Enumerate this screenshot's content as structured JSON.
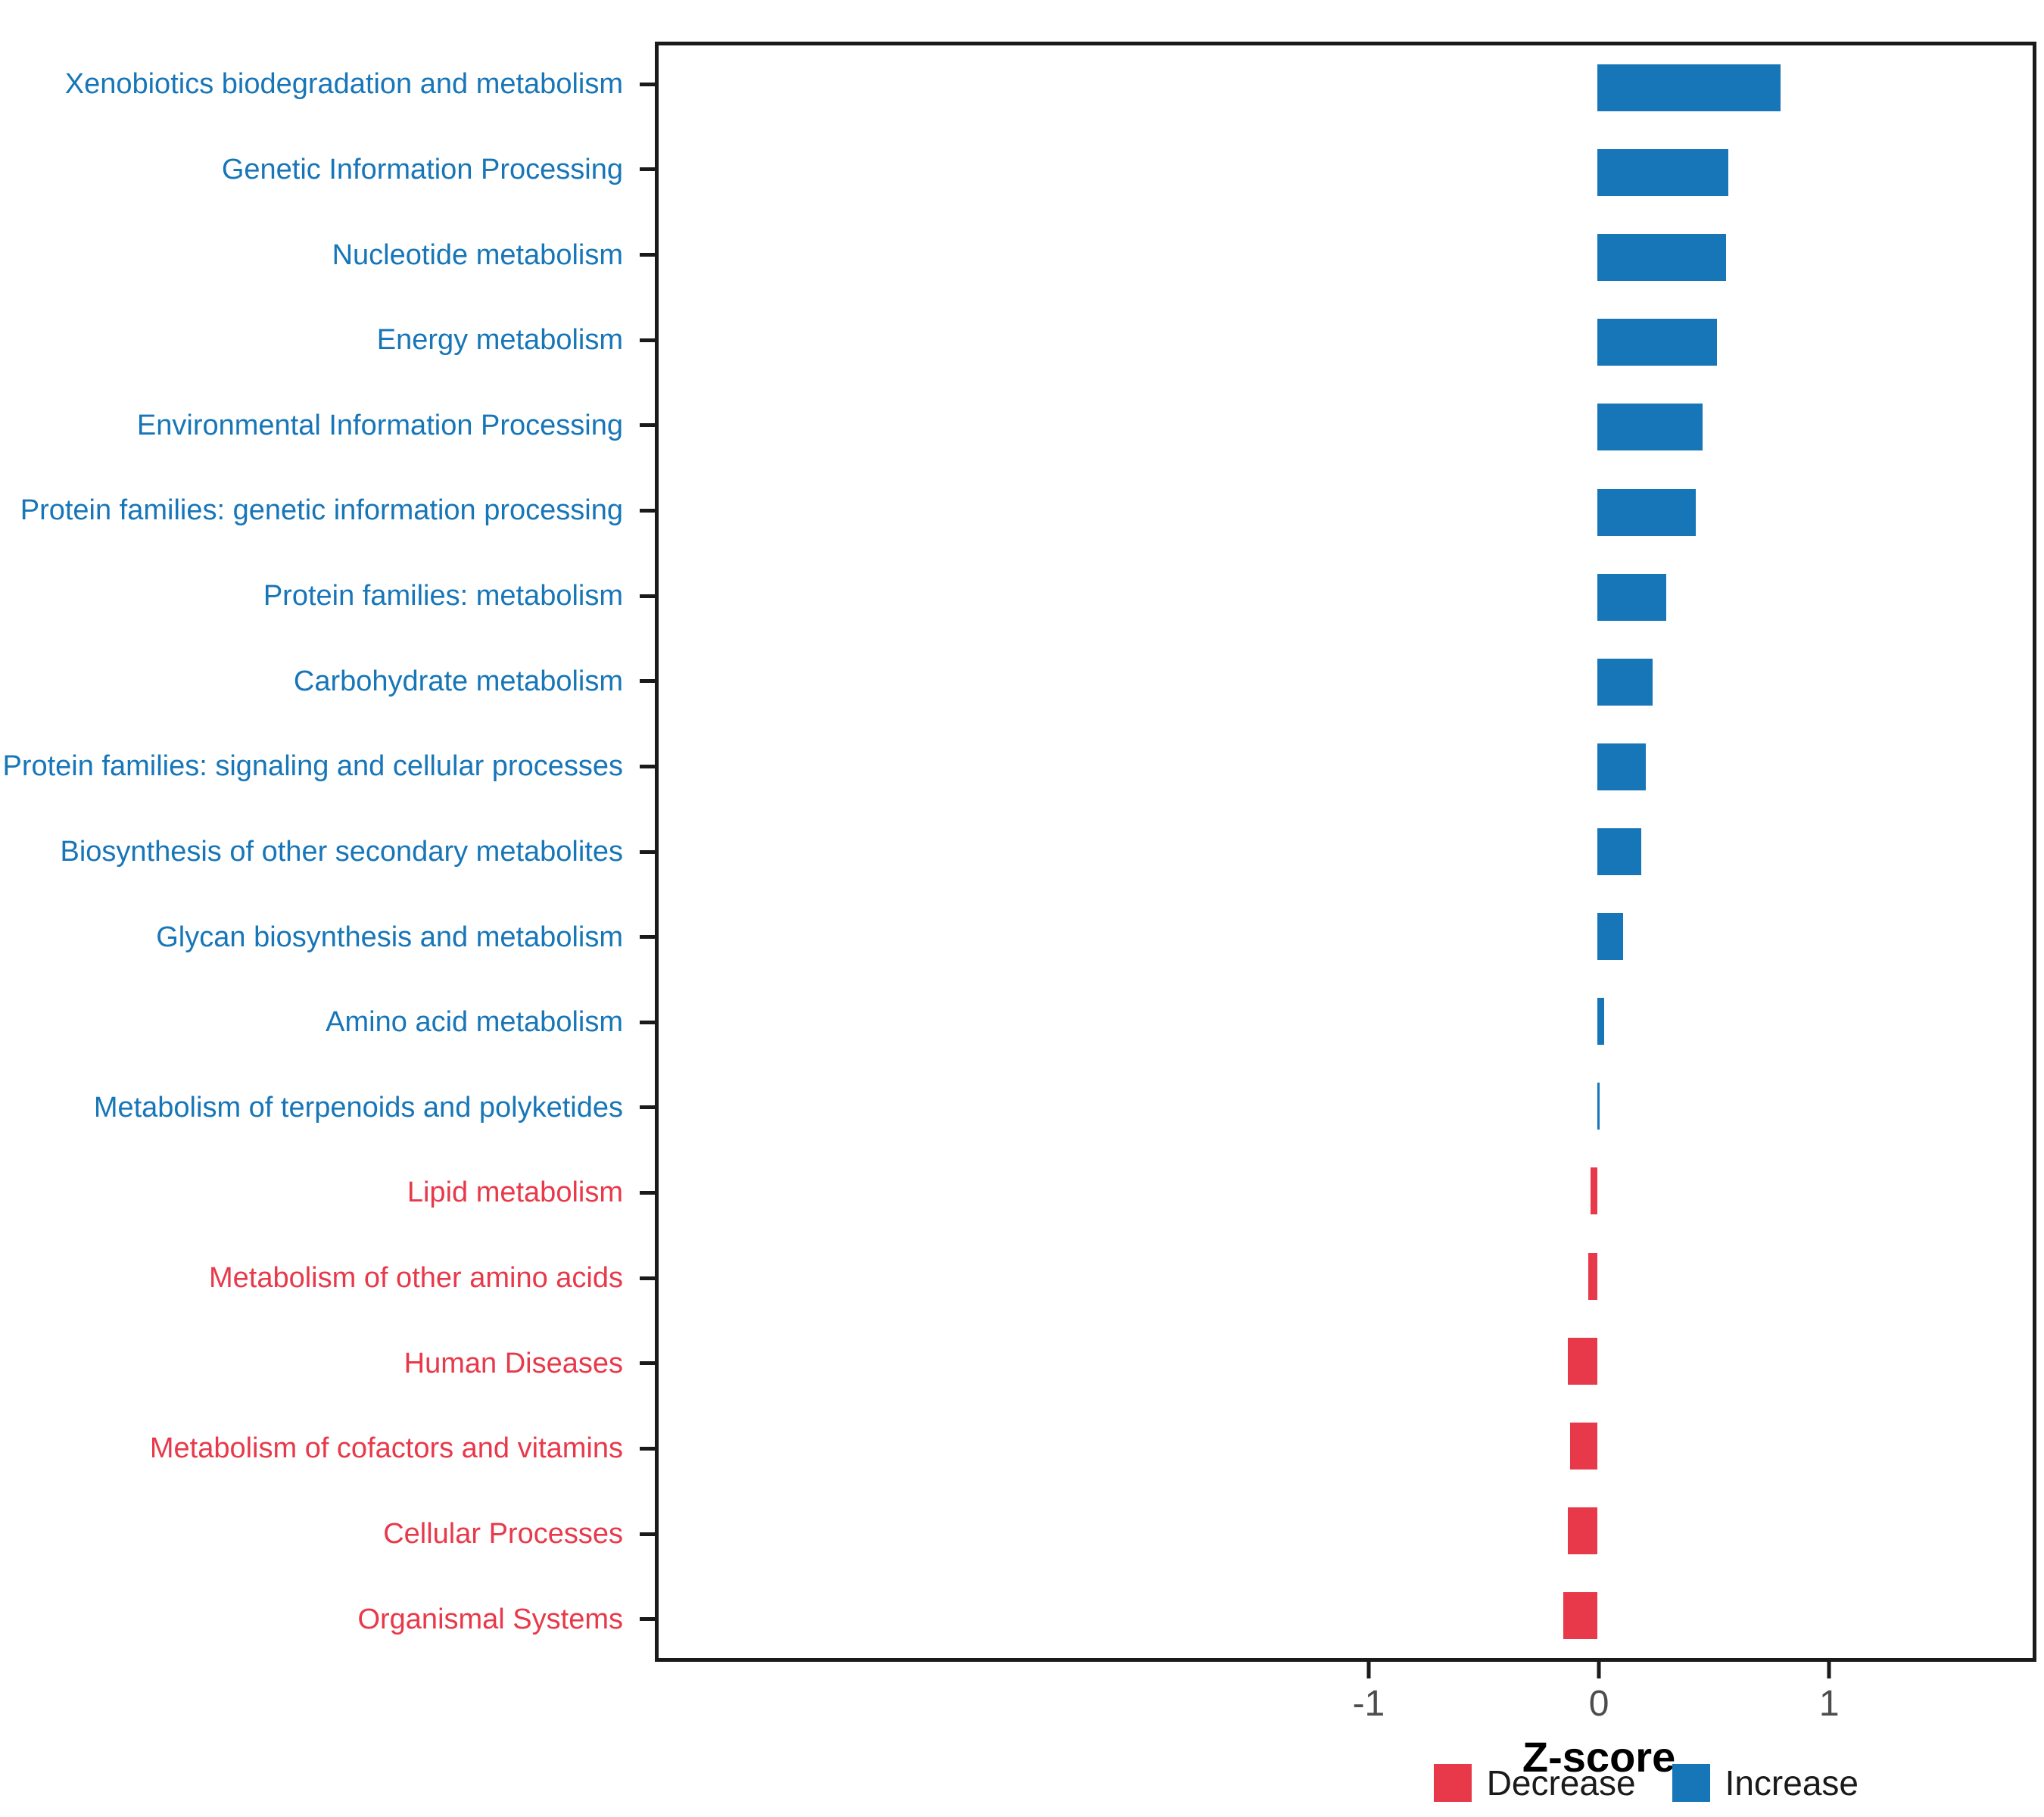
{
  "chart_data": {
    "type": "bar",
    "orientation": "horizontal",
    "title": "",
    "xlabel": "Z-score",
    "categories": [
      "Xenobiotics biodegradation and metabolism",
      "Genetic Information Processing",
      "Nucleotide metabolism",
      "Energy metabolism",
      "Environmental Information Processing",
      "Protein families: genetic information processing",
      "Protein families: metabolism",
      "Carbohydrate metabolism",
      "Protein families: signaling and cellular processes",
      "Biosynthesis of other secondary metabolites",
      "Glycan biosynthesis and metabolism",
      "Amino acid metabolism",
      "Metabolism of terpenoids and polyketides",
      "Lipid metabolism",
      "Metabolism of other amino acids",
      "Human Diseases",
      "Metabolism of cofactors and vitamins",
      "Cellular Processes",
      "Organismal Systems"
    ],
    "values": [
      0.8,
      0.57,
      0.56,
      0.52,
      0.46,
      0.43,
      0.3,
      0.24,
      0.21,
      0.19,
      0.11,
      0.03,
      0.01,
      -0.03,
      -0.04,
      -0.13,
      -0.12,
      -0.13,
      -0.15
    ],
    "xlim": [
      -4.1,
      1.9
    ],
    "xticks": [
      -1,
      0,
      1
    ],
    "grid": false,
    "colors": {
      "increase": "#1776B8",
      "decrease": "#E8394A"
    },
    "legend": [
      {
        "label": "Decrease",
        "key": "decrease"
      },
      {
        "label": "Increase",
        "key": "increase"
      }
    ],
    "legend_position": "bottom-right"
  }
}
